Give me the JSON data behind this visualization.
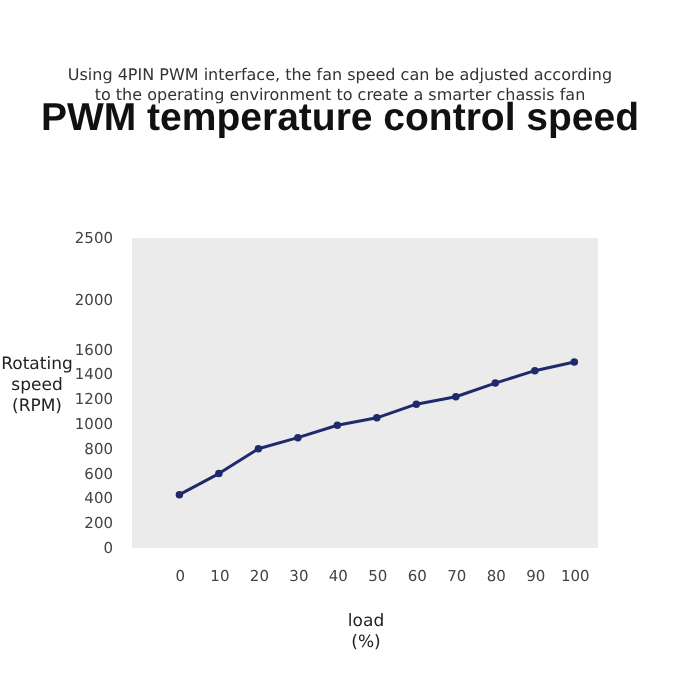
{
  "chart_data": {
    "type": "line",
    "title": "PWM temperature control speed",
    "subtitle": "Using 4PIN PWM interface, the fan speed can be adjusted according to the operating environment to create a smarter chassis fan",
    "xlabel": "load\n(%)",
    "ylabel": "Rotating\nspeed\n(RPM)",
    "x": [
      0,
      10,
      20,
      30,
      40,
      50,
      60,
      70,
      80,
      90,
      100
    ],
    "series": [
      {
        "color": "#1f2a6b",
        "values": [
          430,
          600,
          800,
          890,
          990,
          1050,
          1160,
          1220,
          1330,
          1430,
          1500
        ]
      }
    ],
    "xlim": [
      -12,
      106
    ],
    "xticks": [
      0,
      10,
      20,
      30,
      40,
      50,
      60,
      70,
      80,
      90,
      100
    ],
    "ylim": [
      0,
      2500
    ],
    "yticks": [
      0,
      200,
      400,
      600,
      800,
      1000,
      1200,
      1400,
      1600,
      2000,
      2500
    ],
    "grid": false,
    "marker": "circle",
    "line_style": "solid"
  }
}
